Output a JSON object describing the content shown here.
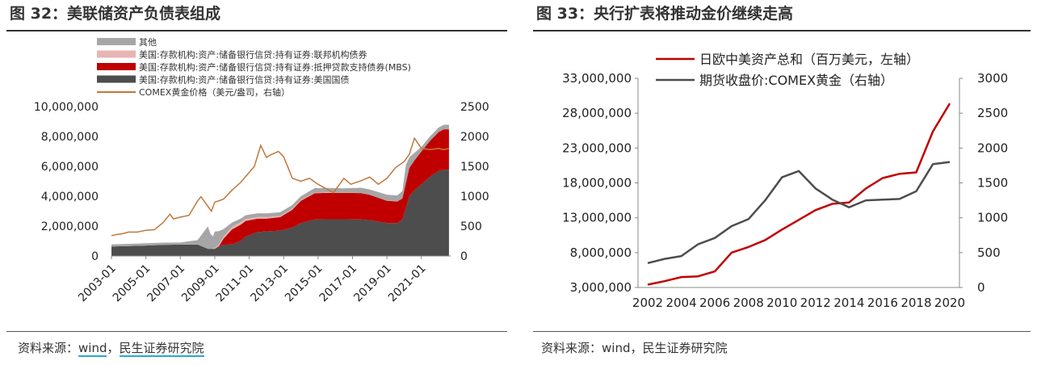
{
  "left": {
    "title": "图 32：美联储资产负债表组成",
    "source_prefix": "资料来源：",
    "source_link": "wind",
    "source_sep": "，",
    "source_org": "民生证券研究院",
    "chart_data": {
      "type": "area",
      "legend_placement": "top-left",
      "legend": [
        {
          "label": "其他",
          "color": "#a6a6a6",
          "kind": "area"
        },
        {
          "label": "美国:存款机构:资产:储备银行信贷:持有证券:联邦机构债券",
          "color": "#e8b4b4",
          "kind": "area"
        },
        {
          "label": "美国:存款机构:资产:储备银行信贷:持有证券:抵押贷款支持债券(MBS)",
          "color": "#c00000",
          "kind": "area"
        },
        {
          "label": "美国:存款机构:资产:储备银行信贷:持有证券:美国国债",
          "color": "#4d4d4d",
          "kind": "area"
        },
        {
          "label": "COMEX黄金价格（美元/盎司，右轴）",
          "color": "#c0783c",
          "kind": "line"
        }
      ],
      "x_ticks": [
        "2003-01",
        "2005-01",
        "2007-01",
        "2009-01",
        "2011-01",
        "2013-01",
        "2015-01",
        "2017-01",
        "2019-01",
        "2021-01"
      ],
      "x_range": [
        2003.0,
        2022.7
      ],
      "y_left_ticks": [
        "0",
        "2,000,000",
        "4,000,000",
        "6,000,000",
        "8,000,000",
        "10,000,000"
      ],
      "y_left_range": [
        0,
        10000000
      ],
      "y_right_ticks": [
        "0",
        "500",
        "1000",
        "1500",
        "2000",
        "2500"
      ],
      "y_right_range": [
        0,
        2500
      ],
      "x": [
        2003.0,
        2004.0,
        2005.0,
        2006.0,
        2007.0,
        2008.0,
        2008.6,
        2008.75,
        2008.9,
        2009.0,
        2009.25,
        2009.5,
        2010.0,
        2010.5,
        2010.8,
        2011.5,
        2012.0,
        2012.8,
        2013.5,
        2014.0,
        2014.8,
        2015.5,
        2016.5,
        2017.5,
        2018.0,
        2019.0,
        2019.6,
        2019.9,
        2020.1,
        2020.3,
        2020.6,
        2021.0,
        2021.5,
        2022.0,
        2022.3,
        2022.6
      ],
      "series": [
        {
          "name": "美国:存款机构:资产:储备银行信贷:持有证券:美国国债",
          "values": [
            630000,
            660000,
            700000,
            740000,
            760000,
            760000,
            480000,
            480000,
            480000,
            480000,
            620000,
            750000,
            780000,
            1000000,
            1300000,
            1600000,
            1650000,
            1700000,
            1900000,
            2200000,
            2450000,
            2460000,
            2460000,
            2450000,
            2400000,
            2200000,
            2200000,
            2450000,
            3200000,
            4000000,
            4400000,
            4800000,
            5300000,
            5700000,
            5780000,
            5780000
          ]
        },
        {
          "name": "美国:存款机构:资产:储备银行信贷:持有证券:抵押贷款支持债券(MBS)",
          "values": [
            0,
            0,
            0,
            0,
            0,
            0,
            0,
            0,
            0,
            0,
            50000,
            400000,
            1000000,
            1100000,
            1050000,
            900000,
            850000,
            900000,
            1200000,
            1500000,
            1750000,
            1760000,
            1760000,
            1760000,
            1700000,
            1500000,
            1450000,
            1400000,
            1700000,
            1900000,
            2000000,
            2200000,
            2400000,
            2600000,
            2700000,
            2700000
          ]
        },
        {
          "name": "美国:存款机构:资产:储备银行信贷:持有证券:联邦机构债券",
          "values": [
            0,
            0,
            0,
            0,
            0,
            0,
            0,
            0,
            20000,
            50000,
            100000,
            140000,
            160000,
            150000,
            130000,
            110000,
            100000,
            80000,
            60000,
            50000,
            40000,
            30000,
            10000,
            5000,
            3000,
            2000,
            2000,
            2000,
            2000,
            2000,
            2000,
            2000,
            2000,
            2000,
            2000,
            2000
          ]
        },
        {
          "name": "其他",
          "values": [
            150000,
            150000,
            150000,
            150000,
            150000,
            300000,
            1500000,
            1000000,
            800000,
            1100000,
            900000,
            500000,
            300000,
            250000,
            250000,
            250000,
            250000,
            250000,
            250000,
            250000,
            300000,
            300000,
            300000,
            350000,
            350000,
            400000,
            400000,
            500000,
            1200000,
            700000,
            500000,
            300000,
            300000,
            300000,
            300000,
            300000
          ]
        },
        {
          "name": "COMEX黄金价格（美元/盎司，右轴）",
          "x": [
            2003.0,
            2003.3,
            2003.6,
            2004.0,
            2004.5,
            2005.0,
            2005.5,
            2006.0,
            2006.4,
            2006.6,
            2007.0,
            2007.5,
            2008.0,
            2008.2,
            2008.8,
            2009.0,
            2009.5,
            2010.0,
            2010.5,
            2011.0,
            2011.3,
            2011.67,
            2012.0,
            2012.3,
            2012.7,
            2013.0,
            2013.3,
            2013.5,
            2014.0,
            2014.5,
            2015.0,
            2015.9,
            2016.5,
            2016.9,
            2017.5,
            2018.0,
            2018.5,
            2019.0,
            2019.5,
            2020.0,
            2020.3,
            2020.6,
            2021.0,
            2021.5,
            2022.0,
            2022.3,
            2022.6
          ],
          "values": [
            340,
            360,
            370,
            400,
            400,
            430,
            440,
            560,
            700,
            620,
            650,
            680,
            920,
            990,
            750,
            900,
            950,
            1100,
            1230,
            1400,
            1500,
            1850,
            1650,
            1700,
            1750,
            1660,
            1450,
            1300,
            1250,
            1300,
            1200,
            1060,
            1300,
            1200,
            1260,
            1320,
            1200,
            1300,
            1480,
            1580,
            1700,
            1970,
            1800,
            1780,
            1800,
            1780,
            1800
          ]
        }
      ]
    }
  },
  "right": {
    "title": "图 33：央行扩表将推动金价继续走高",
    "source_prefix": "资料来源：",
    "source_link": "wind",
    "source_sep": "，",
    "source_org": "民生证券研究院",
    "chart_data": {
      "type": "line",
      "legend_placement": "top-center",
      "categories": [
        2002,
        2003,
        2004,
        2005,
        2006,
        2007,
        2008,
        2009,
        2010,
        2011,
        2012,
        2013,
        2014,
        2015,
        2016,
        2017,
        2018,
        2019,
        2020
      ],
      "x_ticks": [
        "2002",
        "2004",
        "2006",
        "2008",
        "2010",
        "2012",
        "2014",
        "2016",
        "2018",
        "2020"
      ],
      "y_left_ticks": [
        "3,000,000",
        "8,000,000",
        "13,000,000",
        "18,000,000",
        "23,000,000",
        "28,000,000",
        "33,000,000"
      ],
      "y_left_range": [
        3000000,
        33000000
      ],
      "y_right_ticks": [
        "0",
        "500",
        "1000",
        "1500",
        "2000",
        "2500",
        "3000"
      ],
      "y_right_range": [
        0,
        3000
      ],
      "series": [
        {
          "name": "日欧中美资产总和（百万美元，左轴）",
          "color": "#c00000",
          "axis": "left",
          "values": [
            3400000,
            3900000,
            4500000,
            4600000,
            5300000,
            8000000,
            8800000,
            9800000,
            11300000,
            12700000,
            14100000,
            15000000,
            15200000,
            17200000,
            18700000,
            19300000,
            19500000,
            25400000,
            29400000
          ]
        },
        {
          "name": "期货收盘价:COMEX黄金（右轴）",
          "color": "#4d4d4d",
          "axis": "right",
          "values": [
            350,
            410,
            450,
            620,
            710,
            880,
            980,
            1250,
            1580,
            1670,
            1420,
            1260,
            1150,
            1250,
            1260,
            1270,
            1380,
            1770,
            1800
          ]
        }
      ]
    }
  }
}
